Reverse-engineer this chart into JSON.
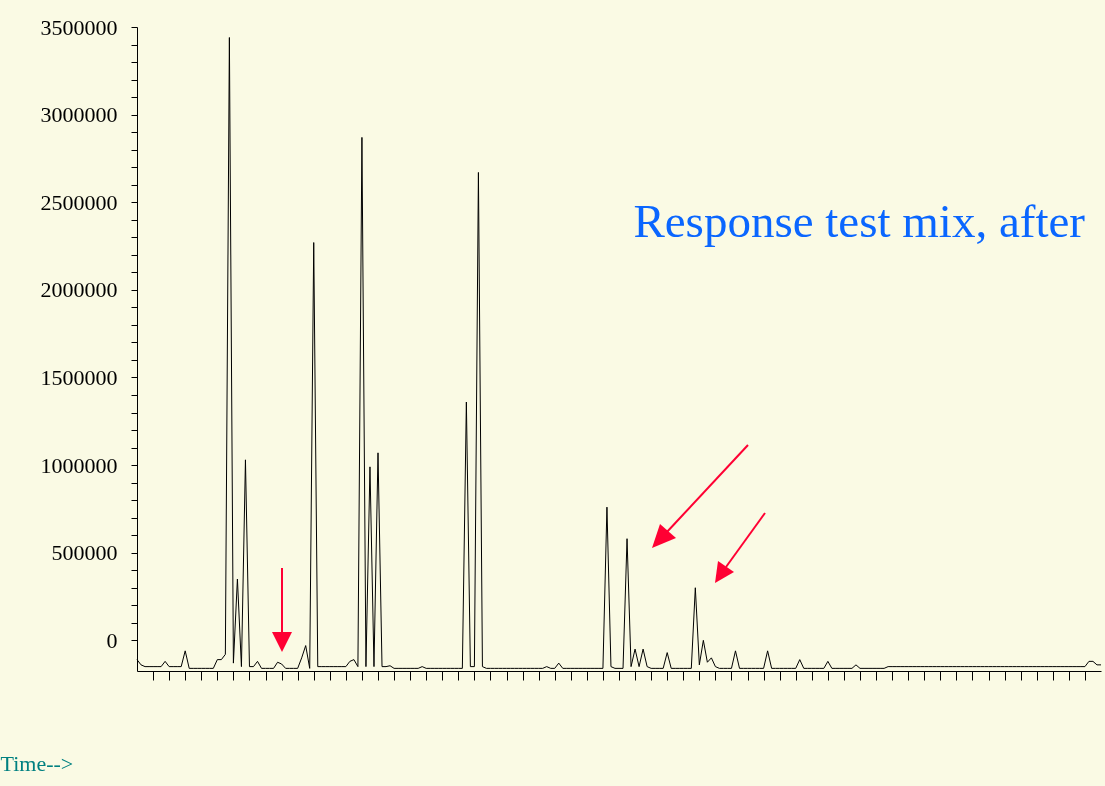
{
  "chart_data": {
    "type": "line",
    "xlabel": "Time-->",
    "annotations": [
      "Response test mix, after"
    ],
    "categories": [
      null,
      null,
      null,
      null,
      null,
      null,
      null,
      null,
      null,
      null,
      null,
      null,
      null,
      null,
      null,
      null,
      null,
      null,
      null,
      null,
      null,
      null,
      null,
      null,
      null,
      null,
      null,
      null,
      null,
      null,
      null,
      null,
      null,
      null,
      null,
      null,
      null,
      null,
      null,
      null,
      null,
      null,
      null,
      null,
      null,
      null,
      null,
      null,
      null,
      null,
      null,
      null,
      null,
      null,
      null,
      null,
      null,
      null,
      null,
      null,
      null,
      null,
      null,
      null,
      null,
      null,
      null,
      null,
      null,
      null,
      null,
      null,
      null,
      null,
      null,
      null,
      null,
      null,
      null,
      null,
      null,
      null,
      null,
      null,
      null,
      null,
      null,
      null,
      null,
      null,
      null,
      null,
      null,
      null,
      null,
      null,
      null,
      null,
      null,
      null,
      null,
      null,
      null,
      null,
      null,
      null,
      null,
      null,
      null,
      null,
      null,
      null,
      null,
      null,
      null,
      null,
      null,
      null,
      null,
      null,
      null,
      null,
      null,
      null,
      null,
      null,
      null,
      null,
      null,
      null,
      null,
      null,
      null,
      null,
      null,
      null,
      null,
      null,
      null,
      null,
      null,
      null,
      null,
      null,
      null,
      null,
      null,
      null,
      null,
      null,
      null,
      null,
      null,
      null,
      null,
      null,
      null,
      null,
      null,
      null,
      null,
      null,
      null,
      null,
      null,
      null,
      null,
      null,
      null,
      null,
      null,
      null,
      null,
      null,
      null,
      null,
      null,
      null,
      null,
      null,
      null,
      null,
      null,
      null,
      null,
      null,
      null,
      null,
      null,
      null,
      null,
      null,
      null,
      null,
      null,
      null,
      null,
      null,
      null,
      null,
      null,
      null,
      null,
      null,
      null,
      null,
      null,
      null,
      null,
      null,
      null,
      null,
      null,
      null,
      null,
      null,
      null,
      null,
      null,
      null,
      null,
      null,
      null,
      null,
      null,
      null,
      null,
      null,
      null,
      null,
      null,
      null,
      null,
      null,
      null,
      null,
      null,
      null,
      null,
      null,
      null
    ],
    "series": [
      {
        "color": "#000000",
        "values": [
          -110000,
          -140000,
          -150000,
          -150000,
          -150000,
          -150000,
          -150000,
          -120000,
          -150000,
          -150000,
          -150000,
          -150000,
          -60000,
          -160000,
          -160000,
          -160000,
          -160000,
          -160000,
          -160000,
          -160000,
          -110000,
          -110000,
          -80000,
          3440000,
          -130000,
          350000,
          -150000,
          1030000,
          -150000,
          -150000,
          -120000,
          -160000,
          -160000,
          -160000,
          -160000,
          -125000,
          -135000,
          -160000,
          -160000,
          -160000,
          -160000,
          -100000,
          -30000,
          -160000,
          2270000,
          -150000,
          -150000,
          -150000,
          -150000,
          -150000,
          -150000,
          -150000,
          -150000,
          -120000,
          -110000,
          -150000,
          2870000,
          -150000,
          990000,
          -150000,
          1070000,
          -150000,
          -150000,
          -145000,
          -160000,
          -160000,
          -160000,
          -160000,
          -160000,
          -160000,
          -160000,
          -150000,
          -160000,
          -160000,
          -160000,
          -160000,
          -160000,
          -160000,
          -160000,
          -160000,
          -160000,
          -160000,
          1360000,
          -150000,
          -150000,
          2670000,
          -150000,
          -160000,
          -160000,
          -160000,
          -160000,
          -160000,
          -160000,
          -160000,
          -160000,
          -160000,
          -160000,
          -160000,
          -160000,
          -160000,
          -160000,
          -160000,
          -150000,
          -160000,
          -160000,
          -130000,
          -160000,
          -160000,
          -160000,
          -160000,
          -160000,
          -160000,
          -160000,
          -160000,
          -160000,
          -160000,
          -160000,
          760000,
          -150000,
          -160000,
          -160000,
          -160000,
          580000,
          -150000,
          -50000,
          -150000,
          -50000,
          -150000,
          -160000,
          -160000,
          -160000,
          -160000,
          -70000,
          -160000,
          -160000,
          -160000,
          -160000,
          -160000,
          -160000,
          300000,
          -140000,
          0,
          -125000,
          -100000,
          -150000,
          -160000,
          -160000,
          -160000,
          -160000,
          -60000,
          -160000,
          -160000,
          -160000,
          -160000,
          -160000,
          -160000,
          -160000,
          -60000,
          -160000,
          -160000,
          -160000,
          -160000,
          -160000,
          -160000,
          -160000,
          -110000,
          -160000,
          -160000,
          -160000,
          -160000,
          -160000,
          -160000,
          -120000,
          -160000,
          -160000,
          -160000,
          -160000,
          -160000,
          -160000,
          -140000,
          -160000,
          -160000,
          -160000,
          -160000,
          -160000,
          -160000,
          -160000,
          -150000,
          -150000,
          -150000,
          -150000,
          -150000,
          -150000,
          -150000,
          -150000,
          -150000,
          -150000,
          -150000,
          -150000,
          -150000,
          -150000,
          -150000,
          -150000,
          -150000,
          -150000,
          -150000,
          -150000,
          -150000,
          -150000,
          -150000,
          -150000,
          -150000,
          -150000,
          -150000,
          -150000,
          -150000,
          -150000,
          -150000,
          -150000,
          -150000,
          -150000,
          -150000,
          -150000,
          -150000,
          -150000,
          -150000,
          -150000,
          -150000,
          -150000,
          -150000,
          -150000,
          -150000,
          -150000,
          -150000,
          -150000,
          -150000,
          -150000,
          -120000,
          -120000,
          -140000,
          -140000
        ]
      }
    ],
    "ylim": [
      -175000,
      3500000
    ],
    "yticks": [
      0,
      {
        "value": 100000,
        "label": null
      },
      {
        "value": 200000,
        "label": null
      },
      {
        "value": 300000,
        "label": null
      },
      {
        "value": 400000,
        "label": null
      },
      500000,
      {
        "value": 600000,
        "label": null
      },
      {
        "value": 700000,
        "label": null
      },
      {
        "value": 800000,
        "label": null
      },
      {
        "value": 900000,
        "label": null
      },
      1000000,
      {
        "value": 1100000,
        "label": null
      },
      {
        "value": 1200000,
        "label": null
      },
      {
        "value": 1300000,
        "label": null
      },
      {
        "value": 1400000,
        "label": null
      },
      1500000,
      {
        "value": 1600000,
        "label": null
      },
      {
        "value": 1700000,
        "label": null
      },
      {
        "value": 1800000,
        "label": null
      },
      {
        "value": 1900000,
        "label": null
      },
      2000000,
      {
        "value": 2100000,
        "label": null
      },
      {
        "value": 2200000,
        "label": null
      },
      {
        "value": 2300000,
        "label": null
      },
      {
        "value": 2400000,
        "label": null
      },
      2500000,
      {
        "value": 2600000,
        "label": null
      },
      {
        "value": 2700000,
        "label": null
      },
      {
        "value": 2800000,
        "label": null
      },
      {
        "value": 2900000,
        "label": null
      },
      3000000,
      {
        "value": 3100000,
        "label": null
      },
      {
        "value": 3200000,
        "label": null
      },
      {
        "value": 3300000,
        "label": null
      },
      {
        "value": 3400000,
        "label": null
      },
      3500000
    ],
    "marker": "none",
    "line_style": "solid",
    "grid": false,
    "legend": false
  }
}
